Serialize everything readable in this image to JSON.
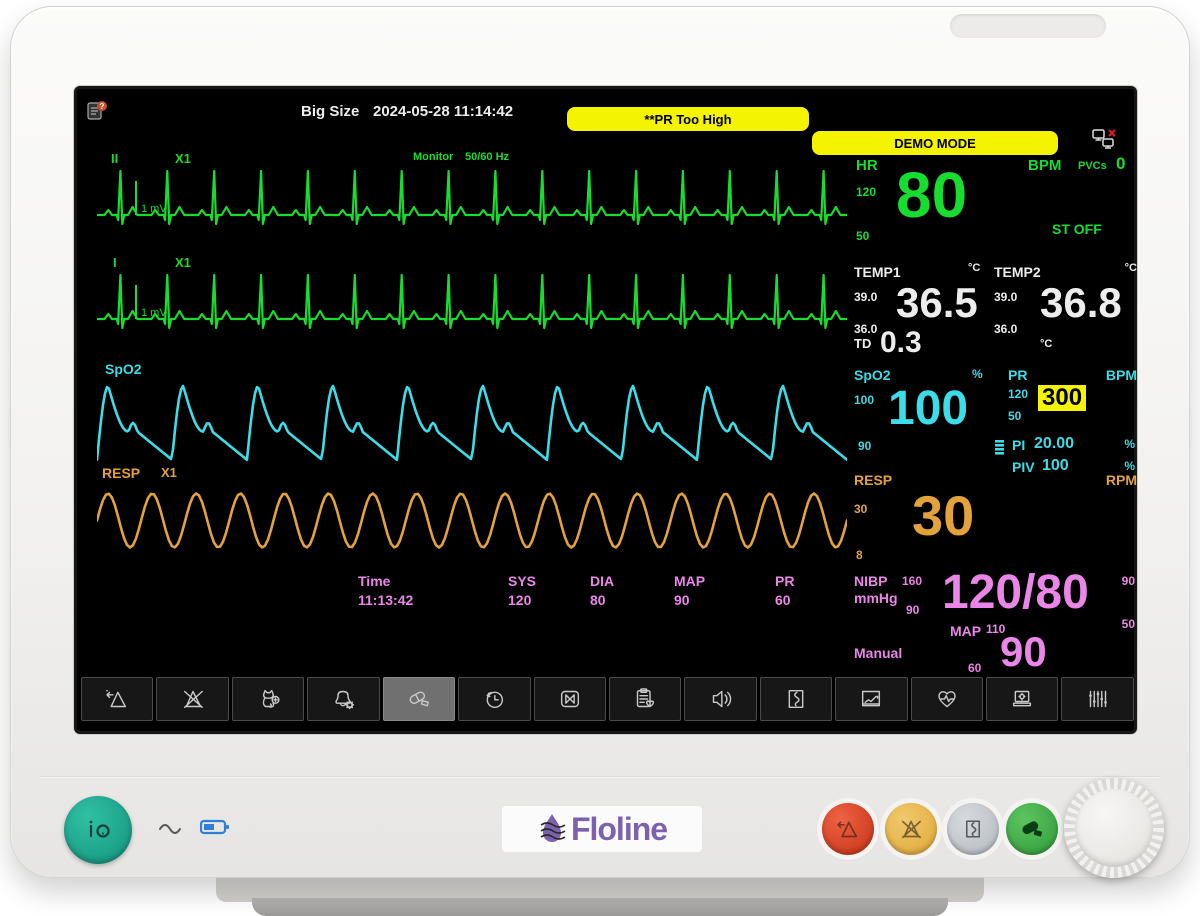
{
  "colors": {
    "green": "#16dd2e",
    "cyan": "#3adde8",
    "orange": "#e4a23c",
    "pink": "#ea86e8",
    "yellow": "#f4f400",
    "white": "#ededed"
  },
  "statusbar": {
    "view_mode": "Big Size",
    "datetime": "2024-05-28 11:14:42",
    "alarm_message": "**PR Too High",
    "demo_banner": "DEMO MODE",
    "icons": [
      "patient-info-icon",
      "network-disconnected-icon"
    ]
  },
  "waves": {
    "ecg1": {
      "lead": "II",
      "gain": "X1",
      "cal": "1 mV",
      "filter_label": "Monitor",
      "freq_label": "50/60 Hz",
      "beats": 16
    },
    "ecg2": {
      "lead": "I",
      "gain": "X1",
      "cal": "1 mV",
      "beats": 16
    },
    "spo2": {
      "label": "SpO2",
      "cycles": 10
    },
    "resp": {
      "label": "RESP",
      "gain": "X1",
      "cycles": 17
    }
  },
  "nibp_list": {
    "columns": [
      {
        "label": "Time",
        "value": "11:13:42"
      },
      {
        "label": "SYS",
        "value": "120"
      },
      {
        "label": "DIA",
        "value": "80"
      },
      {
        "label": "MAP",
        "value": "90"
      },
      {
        "label": "PR",
        "value": "60"
      }
    ]
  },
  "panels": {
    "hr": {
      "label": "HR",
      "unit": "BPM",
      "pvcs_label": "PVCs",
      "pvcs": "0",
      "hi": "120",
      "lo": "50",
      "value": "80",
      "st": "ST OFF"
    },
    "temp": {
      "t1_label": "TEMP1",
      "t1_unit": "°C",
      "t1_hi": "39.0",
      "t1_lo": "36.0",
      "t1": "36.5",
      "t2_label": "TEMP2",
      "t2_unit": "°C",
      "t2_hi": "39.0",
      "t2_lo": "36.0",
      "t2": "36.8",
      "td_label": "TD",
      "td": "0.3",
      "td_unit": "°C"
    },
    "spo2": {
      "label": "SpO2",
      "unit": "%",
      "hi": "100",
      "lo": "90",
      "value": "100",
      "pr_label": "PR",
      "pr_unit": "BPM",
      "pr_hi": "120",
      "pr_lo": "50",
      "pr_value": "300",
      "pi_label": "PI",
      "pi_value": "20.00",
      "pi_unit": "%",
      "piv_label": "PIV",
      "piv_value": "100",
      "piv_unit": "%"
    },
    "resp": {
      "label": "RESP",
      "unit": "RPM",
      "hi": "30",
      "lo": "8",
      "value": "30"
    },
    "nibp": {
      "label": "NIBP",
      "unit": "mmHg",
      "sys_hi": "160",
      "sys_lo": "90",
      "value": "120/80",
      "dia_hi": "90",
      "dia_lo": "50",
      "map_label": "MAP",
      "map_hi": "110",
      "map_lo": "60",
      "map_value": "90",
      "mode": "Manual"
    }
  },
  "toolbar": {
    "selected_index": 4,
    "items": [
      "alarm-silence",
      "alarm-off",
      "new-patient",
      "alarm-setup",
      "nibp-start",
      "review",
      "freeze",
      "report",
      "volume",
      "recorder",
      "trends",
      "ecg-setup",
      "screen-setup",
      "parameter-setup"
    ]
  },
  "device": {
    "brand": "Floline",
    "indicators": [
      "ac-power-icon",
      "battery-icon"
    ]
  }
}
